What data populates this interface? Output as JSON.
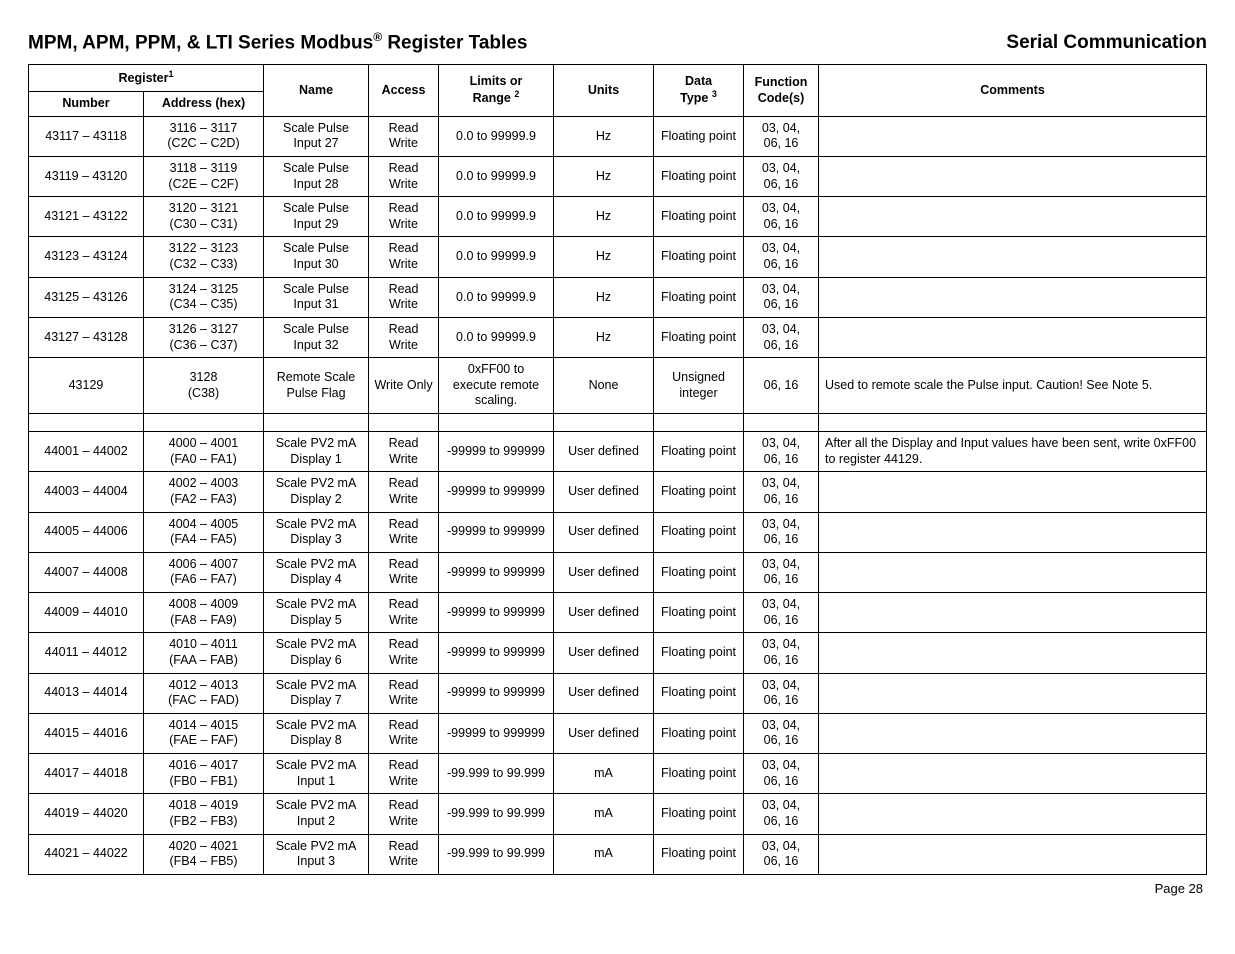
{
  "header": {
    "title_prefix": "MPM, APM, PPM, & LTI Series Modbus",
    "title_suffix": " Register Tables",
    "right": "Serial Communication",
    "reg_sup": "®"
  },
  "columns": {
    "register_group": "Register",
    "register_sup": "1",
    "number": "Number",
    "address": "Address (hex)",
    "name": "Name",
    "access": "Access",
    "limits_line1": "Limits or",
    "limits_line2": "Range",
    "limits_sup": "2",
    "units": "Units",
    "data_line1": "Data",
    "data_line2": "Type",
    "data_sup": "3",
    "func_line1": "Function",
    "func_line2": "Code(s)",
    "comments": "Comments"
  },
  "rows": [
    {
      "number": "43117 – 43118",
      "addr_l1": "3116 – 3117",
      "addr_l2": "(C2C – C2D)",
      "name_l1": "Scale Pulse",
      "name_l2": "Input 27",
      "access": "Read Write",
      "limits": "0.0 to 99999.9",
      "units": "Hz",
      "dtype": "Floating point",
      "func_l1": "03, 04,",
      "func_l2": "06, 16",
      "comments": ""
    },
    {
      "number": "43119 – 43120",
      "addr_l1": "3118 – 3119",
      "addr_l2": "(C2E – C2F)",
      "name_l1": "Scale Pulse",
      "name_l2": "Input 28",
      "access": "Read Write",
      "limits": "0.0 to 99999.9",
      "units": "Hz",
      "dtype": "Floating point",
      "func_l1": "03, 04,",
      "func_l2": "06, 16",
      "comments": ""
    },
    {
      "number": "43121 – 43122",
      "addr_l1": "3120 – 3121",
      "addr_l2": "(C30 – C31)",
      "name_l1": "Scale Pulse",
      "name_l2": "Input 29",
      "access": "Read Write",
      "limits": "0.0 to 99999.9",
      "units": "Hz",
      "dtype": "Floating point",
      "func_l1": "03, 04,",
      "func_l2": "06, 16",
      "comments": ""
    },
    {
      "number": "43123 – 43124",
      "addr_l1": "3122 – 3123",
      "addr_l2": "(C32 – C33)",
      "name_l1": "Scale Pulse",
      "name_l2": "Input 30",
      "access": "Read Write",
      "limits": "0.0 to 99999.9",
      "units": "Hz",
      "dtype": "Floating point",
      "func_l1": "03, 04,",
      "func_l2": "06, 16",
      "comments": ""
    },
    {
      "number": "43125 – 43126",
      "addr_l1": "3124 – 3125",
      "addr_l2": "(C34 – C35)",
      "name_l1": "Scale Pulse",
      "name_l2": "Input 31",
      "access": "Read Write",
      "limits": "0.0 to 99999.9",
      "units": "Hz",
      "dtype": "Floating point",
      "func_l1": "03, 04,",
      "func_l2": "06, 16",
      "comments": ""
    },
    {
      "number": "43127 – 43128",
      "addr_l1": "3126 – 3127",
      "addr_l2": "(C36 – C37)",
      "name_l1": "Scale Pulse",
      "name_l2": "Input 32",
      "access": "Read Write",
      "limits": "0.0 to 99999.9",
      "units": "Hz",
      "dtype": "Floating point",
      "func_l1": "03, 04,",
      "func_l2": "06, 16",
      "comments": ""
    },
    {
      "number": "43129",
      "addr_l1": "3128",
      "addr_l2": "(C38)",
      "name_l1": "Remote Scale",
      "name_l2": "Pulse Flag",
      "access": "Write Only",
      "limits_l1": "0xFF00 to",
      "limits_l2": "execute remote",
      "limits_l3": "scaling.",
      "units": "None",
      "dtype_l1": "Unsigned",
      "dtype_l2": "integer",
      "func": "06, 16",
      "comments": "Used to remote scale the Pulse input. Caution! See Note 5."
    },
    {
      "spacer": true
    },
    {
      "number": "44001 – 44002",
      "addr_l1": "4000 – 4001",
      "addr_l2": "(FA0 – FA1)",
      "name_l1": "Scale PV2 mA",
      "name_l2": "Display 1",
      "access": "Read Write",
      "limits": "-99999 to 999999",
      "units": "User defined",
      "dtype": "Floating point",
      "func_l1": "03, 04,",
      "func_l2": "06, 16",
      "comments": "After all the Display and Input values have been sent, write 0xFF00 to register 44129."
    },
    {
      "number": "44003 – 44004",
      "addr_l1": "4002 – 4003",
      "addr_l2": "(FA2 – FA3)",
      "name_l1": "Scale PV2 mA",
      "name_l2": "Display 2",
      "access": "Read Write",
      "limits": "-99999 to 999999",
      "units": "User defined",
      "dtype": "Floating point",
      "func_l1": "03, 04,",
      "func_l2": "06, 16",
      "comments": ""
    },
    {
      "number": "44005 – 44006",
      "addr_l1": "4004 – 4005",
      "addr_l2": "(FA4 – FA5)",
      "name_l1": "Scale PV2 mA",
      "name_l2": "Display 3",
      "access": "Read Write",
      "limits": "-99999 to 999999",
      "units": "User defined",
      "dtype": "Floating point",
      "func_l1": "03, 04,",
      "func_l2": "06, 16",
      "comments": ""
    },
    {
      "number": "44007 – 44008",
      "addr_l1": "4006 – 4007",
      "addr_l2": "(FA6 – FA7)",
      "name_l1": "Scale PV2 mA",
      "name_l2": "Display 4",
      "access": "Read Write",
      "limits": "-99999 to 999999",
      "units": "User defined",
      "dtype": "Floating point",
      "func_l1": "03, 04,",
      "func_l2": "06, 16",
      "comments": ""
    },
    {
      "number": "44009 – 44010",
      "addr_l1": "4008 – 4009",
      "addr_l2": "(FA8 – FA9)",
      "name_l1": "Scale PV2 mA",
      "name_l2": "Display 5",
      "access": "Read Write",
      "limits": "-99999 to 999999",
      "units": "User defined",
      "dtype": "Floating point",
      "func_l1": "03, 04,",
      "func_l2": "06, 16",
      "comments": ""
    },
    {
      "number": "44011 – 44012",
      "addr_l1": "4010 – 4011",
      "addr_l2": "(FAA – FAB)",
      "name_l1": "Scale PV2 mA",
      "name_l2": "Display 6",
      "access": "Read Write",
      "limits": "-99999 to 999999",
      "units": "User defined",
      "dtype": "Floating point",
      "func_l1": "03, 04,",
      "func_l2": "06, 16",
      "comments": ""
    },
    {
      "number": "44013 – 44014",
      "addr_l1": "4012 – 4013",
      "addr_l2": "(FAC – FAD)",
      "name_l1": "Scale PV2 mA",
      "name_l2": "Display 7",
      "access": "Read Write",
      "limits": "-99999 to 999999",
      "units": "User defined",
      "dtype": "Floating point",
      "func_l1": "03, 04,",
      "func_l2": "06, 16",
      "comments": ""
    },
    {
      "number": "44015 – 44016",
      "addr_l1": "4014 – 4015",
      "addr_l2": "(FAE – FAF)",
      "name_l1": "Scale PV2 mA",
      "name_l2": "Display 8",
      "access": "Read Write",
      "limits": "-99999 to 999999",
      "units": "User defined",
      "dtype": "Floating point",
      "func_l1": "03, 04,",
      "func_l2": "06, 16",
      "comments": ""
    },
    {
      "number": "44017 – 44018",
      "addr_l1": "4016 – 4017",
      "addr_l2": "(FB0 – FB1)",
      "name_l1": "Scale PV2 mA",
      "name_l2": "Input 1",
      "access": "Read Write",
      "limits": "-99.999 to 99.999",
      "units": "mA",
      "dtype": "Floating point",
      "func_l1": "03, 04,",
      "func_l2": "06, 16",
      "comments": ""
    },
    {
      "number": "44019 – 44020",
      "addr_l1": "4018 – 4019",
      "addr_l2": "(FB2 – FB3)",
      "name_l1": "Scale PV2 mA",
      "name_l2": "Input 2",
      "access": "Read Write",
      "limits": "-99.999 to 99.999",
      "units": "mA",
      "dtype": "Floating point",
      "func_l1": "03, 04,",
      "func_l2": "06, 16",
      "comments": ""
    },
    {
      "number": "44021 – 44022",
      "addr_l1": "4020 – 4021",
      "addr_l2": "(FB4 – FB5)",
      "name_l1": "Scale PV2 mA",
      "name_l2": "Input 3",
      "access": "Read Write",
      "limits": "-99.999 to 99.999",
      "units": "mA",
      "dtype": "Floating point",
      "func_l1": "03, 04,",
      "func_l2": "06, 16",
      "comments": ""
    }
  ],
  "footer": {
    "page": "Page 28"
  }
}
